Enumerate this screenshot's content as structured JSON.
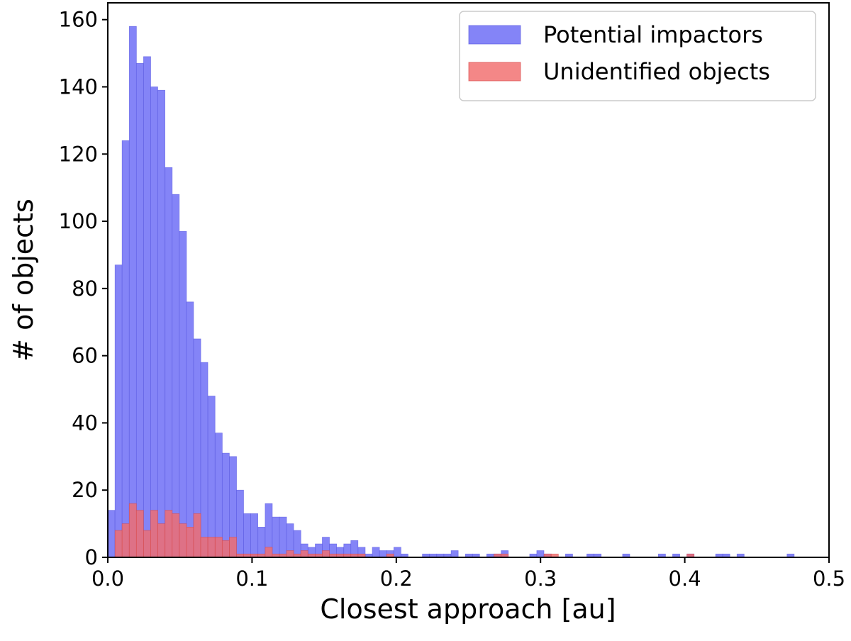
{
  "chart_data": {
    "type": "bar",
    "subtype": "overlaid-histogram",
    "title": "",
    "xlabel": "Closest approach [au]",
    "ylabel": "# of objects",
    "xlim": [
      0.0,
      0.5
    ],
    "ylim": [
      0,
      165
    ],
    "x_ticks": [
      "0.0",
      "0.1",
      "0.2",
      "0.3",
      "0.4",
      "0.5"
    ],
    "y_ticks": [
      "0",
      "20",
      "40",
      "60",
      "80",
      "100",
      "120",
      "140",
      "160"
    ],
    "grid": false,
    "legend_position": "top-right",
    "series": [
      {
        "name": "Potential impactors",
        "color": "#7a7af6",
        "edge_color": "#5a5ae0",
        "bins": [
          [
            0.0,
            14
          ],
          [
            0.005,
            87
          ],
          [
            0.0099,
            124
          ],
          [
            0.0149,
            158
          ],
          [
            0.0198,
            147
          ],
          [
            0.0248,
            149
          ],
          [
            0.0297,
            140
          ],
          [
            0.0347,
            139
          ],
          [
            0.0397,
            116
          ],
          [
            0.0446,
            108
          ],
          [
            0.0496,
            97
          ],
          [
            0.0545,
            76
          ],
          [
            0.0595,
            65
          ],
          [
            0.0644,
            58
          ],
          [
            0.0694,
            48
          ],
          [
            0.0744,
            37
          ],
          [
            0.0793,
            31
          ],
          [
            0.0843,
            30
          ],
          [
            0.0892,
            20
          ],
          [
            0.0942,
            13
          ],
          [
            0.0991,
            13
          ],
          [
            0.1041,
            9
          ],
          [
            0.1091,
            16
          ],
          [
            0.114,
            12
          ],
          [
            0.119,
            12
          ],
          [
            0.1239,
            10
          ],
          [
            0.1289,
            8
          ],
          [
            0.1338,
            4
          ],
          [
            0.1388,
            3
          ],
          [
            0.1438,
            4
          ],
          [
            0.1487,
            6
          ],
          [
            0.1537,
            4
          ],
          [
            0.1586,
            3
          ],
          [
            0.1636,
            4
          ],
          [
            0.1685,
            5
          ],
          [
            0.1735,
            3
          ],
          [
            0.1785,
            1
          ],
          [
            0.1834,
            3
          ],
          [
            0.1884,
            2
          ],
          [
            0.1933,
            2
          ],
          [
            0.1983,
            3
          ],
          [
            0.2032,
            1
          ],
          [
            0.2082,
            0
          ],
          [
            0.2132,
            0
          ],
          [
            0.2181,
            1
          ],
          [
            0.2231,
            1
          ],
          [
            0.228,
            1
          ],
          [
            0.233,
            1
          ],
          [
            0.238,
            2
          ],
          [
            0.2429,
            0
          ],
          [
            0.2479,
            1
          ],
          [
            0.2528,
            1
          ],
          [
            0.2578,
            0
          ],
          [
            0.2627,
            1
          ],
          [
            0.2677,
            1
          ],
          [
            0.2727,
            2
          ],
          [
            0.2776,
            0
          ],
          [
            0.2826,
            0
          ],
          [
            0.2875,
            0
          ],
          [
            0.2925,
            1
          ],
          [
            0.2974,
            2
          ],
          [
            0.3024,
            1
          ],
          [
            0.3074,
            0
          ],
          [
            0.3123,
            0
          ],
          [
            0.3173,
            1
          ],
          [
            0.3222,
            0
          ],
          [
            0.3272,
            0
          ],
          [
            0.3321,
            1
          ],
          [
            0.3371,
            1
          ],
          [
            0.3421,
            0
          ],
          [
            0.347,
            0
          ],
          [
            0.352,
            0
          ],
          [
            0.3569,
            1
          ],
          [
            0.3619,
            0
          ],
          [
            0.3668,
            0
          ],
          [
            0.3718,
            0
          ],
          [
            0.3768,
            0
          ],
          [
            0.3817,
            1
          ],
          [
            0.3867,
            0
          ],
          [
            0.3916,
            1
          ],
          [
            0.3966,
            0
          ],
          [
            0.4015,
            1
          ],
          [
            0.4065,
            0
          ],
          [
            0.4115,
            0
          ],
          [
            0.4164,
            0
          ],
          [
            0.4214,
            1
          ],
          [
            0.4263,
            1
          ],
          [
            0.4313,
            0
          ],
          [
            0.4362,
            1
          ],
          [
            0.4412,
            0
          ],
          [
            0.4462,
            0
          ],
          [
            0.4511,
            0
          ],
          [
            0.4561,
            0
          ],
          [
            0.461,
            0
          ],
          [
            0.466,
            0
          ],
          [
            0.4709,
            1
          ]
        ]
      },
      {
        "name": "Unidentified objects",
        "color": "#f26d6d",
        "edge_color": "#d94a4a",
        "bins": [
          [
            0.005,
            8
          ],
          [
            0.0099,
            10
          ],
          [
            0.0149,
            16
          ],
          [
            0.0198,
            14
          ],
          [
            0.0248,
            8
          ],
          [
            0.0297,
            14
          ],
          [
            0.0347,
            10
          ],
          [
            0.0397,
            14
          ],
          [
            0.0446,
            13
          ],
          [
            0.0496,
            10
          ],
          [
            0.0545,
            9
          ],
          [
            0.0595,
            13
          ],
          [
            0.0644,
            6
          ],
          [
            0.0694,
            6
          ],
          [
            0.0744,
            6
          ],
          [
            0.0793,
            5
          ],
          [
            0.0843,
            6
          ],
          [
            0.0892,
            1
          ],
          [
            0.0942,
            1
          ],
          [
            0.0991,
            1
          ],
          [
            0.1041,
            1
          ],
          [
            0.1091,
            3
          ],
          [
            0.114,
            1
          ],
          [
            0.119,
            1
          ],
          [
            0.1239,
            2
          ],
          [
            0.1289,
            1
          ],
          [
            0.1338,
            2
          ],
          [
            0.1388,
            1
          ],
          [
            0.1438,
            1
          ],
          [
            0.1487,
            2
          ],
          [
            0.1537,
            1
          ],
          [
            0.1586,
            1
          ],
          [
            0.1636,
            1
          ],
          [
            0.1685,
            1
          ],
          [
            0.1735,
            1
          ],
          [
            0.1933,
            1
          ],
          [
            0.2677,
            1
          ],
          [
            0.2727,
            1
          ],
          [
            0.3024,
            1
          ],
          [
            0.3074,
            1
          ],
          [
            0.4015,
            1
          ]
        ]
      }
    ]
  }
}
